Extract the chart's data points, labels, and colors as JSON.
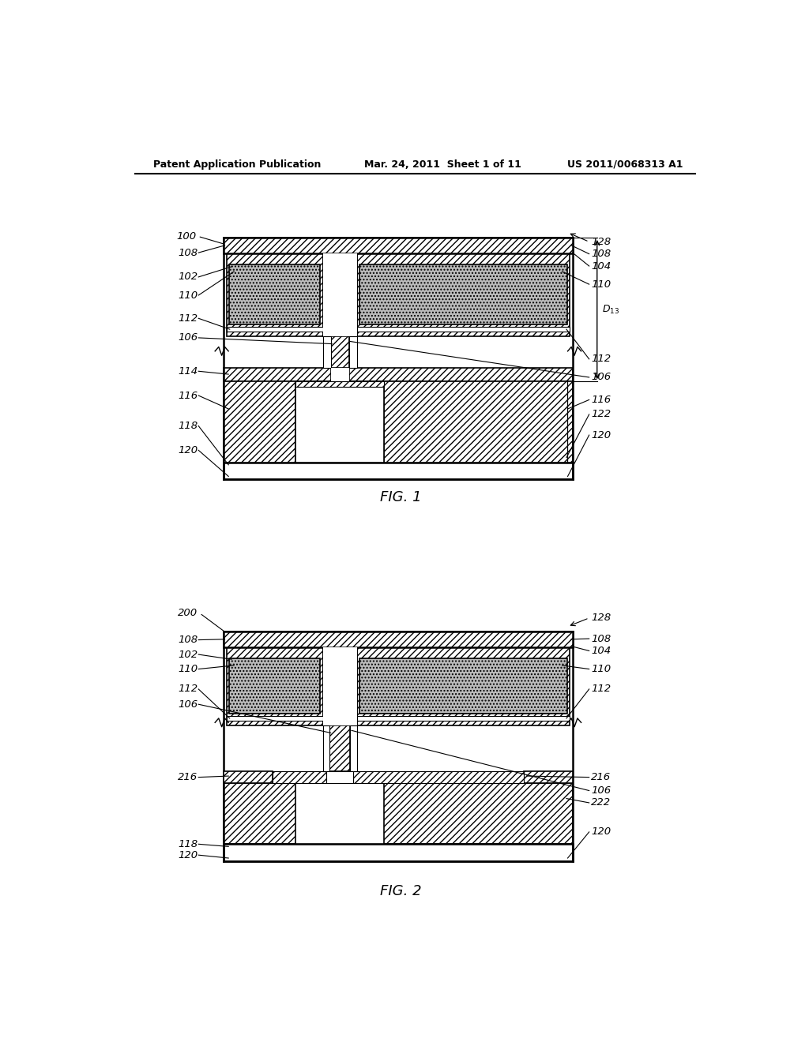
{
  "header_left": "Patent Application Publication",
  "header_mid": "Mar. 24, 2011  Sheet 1 of 11",
  "header_right": "US 2011/0068313 A1",
  "fig1_label": "FIG. 1",
  "fig2_label": "FIG. 2",
  "bg_color": "#ffffff",
  "line_color": "#000000"
}
